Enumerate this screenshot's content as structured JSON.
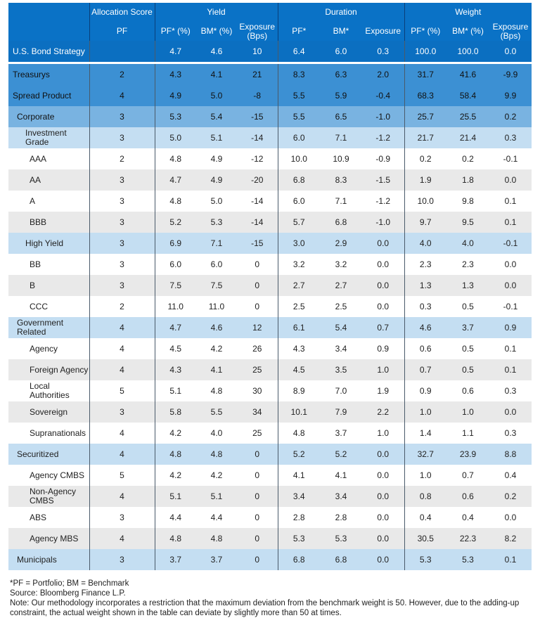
{
  "header": {
    "groups": [
      "Allocation Score",
      "Yield",
      "Duration",
      "Weight"
    ],
    "sub": [
      "PF",
      "PF* (%)",
      "BM* (%)",
      "Exposure (Bps)",
      "PF*",
      "BM*",
      "Exposure",
      "PF* (%)",
      "BM* (%)",
      "Exposure (Bps)"
    ]
  },
  "colors": {
    "header": "#0a72c6",
    "top": "#0b6fc1",
    "dark": "#3c90d3",
    "mid": "#79b3e1",
    "light": "#c4def2",
    "gray": "#e9e9e9"
  },
  "rows": [
    {
      "label": "U.S. Bond Strategy",
      "style": "top",
      "level": 0,
      "v": [
        "",
        "4.7",
        "4.6",
        "10",
        "6.4",
        "6.0",
        "0.3",
        "100.0",
        "100.0",
        "0.0"
      ]
    },
    {
      "label": "Treasurys",
      "style": "dark",
      "level": 0,
      "v": [
        "2",
        "4.3",
        "4.1",
        "21",
        "8.3",
        "6.3",
        "2.0",
        "31.7",
        "41.6",
        "-9.9"
      ]
    },
    {
      "label": "Spread Product",
      "style": "dark",
      "level": 0,
      "v": [
        "4",
        "4.9",
        "5.0",
        "-8",
        "5.5",
        "5.9",
        "-0.4",
        "68.3",
        "58.4",
        "9.9"
      ]
    },
    {
      "label": "Corporate",
      "style": "mid",
      "level": 1,
      "v": [
        "3",
        "5.3",
        "5.4",
        "-15",
        "5.5",
        "6.5",
        "-1.0",
        "25.7",
        "25.5",
        "0.2"
      ]
    },
    {
      "label": "Investment Grade",
      "style": "light",
      "level": 2,
      "v": [
        "3",
        "5.0",
        "5.1",
        "-14",
        "6.0",
        "7.1",
        "-1.2",
        "21.7",
        "21.4",
        "0.3"
      ]
    },
    {
      "label": "AAA",
      "style": "white",
      "level": 3,
      "v": [
        "2",
        "4.8",
        "4.9",
        "-12",
        "10.0",
        "10.9",
        "-0.9",
        "0.2",
        "0.2",
        "-0.1"
      ]
    },
    {
      "label": "AA",
      "style": "gray",
      "level": 3,
      "v": [
        "3",
        "4.7",
        "4.9",
        "-20",
        "6.8",
        "8.3",
        "-1.5",
        "1.9",
        "1.8",
        "0.0"
      ]
    },
    {
      "label": "A",
      "style": "white",
      "level": 3,
      "v": [
        "3",
        "4.8",
        "5.0",
        "-14",
        "6.0",
        "7.1",
        "-1.2",
        "10.0",
        "9.8",
        "0.1"
      ]
    },
    {
      "label": "BBB",
      "style": "gray",
      "level": 3,
      "v": [
        "3",
        "5.2",
        "5.3",
        "-14",
        "5.7",
        "6.8",
        "-1.0",
        "9.7",
        "9.5",
        "0.1"
      ]
    },
    {
      "label": "High Yield",
      "style": "light",
      "level": 2,
      "v": [
        "3",
        "6.9",
        "7.1",
        "-15",
        "3.0",
        "2.9",
        "0.0",
        "4.0",
        "4.0",
        "-0.1"
      ]
    },
    {
      "label": "BB",
      "style": "white",
      "level": 3,
      "v": [
        "3",
        "6.0",
        "6.0",
        "0",
        "3.2",
        "3.2",
        "0.0",
        "2.3",
        "2.3",
        "0.0"
      ]
    },
    {
      "label": "B",
      "style": "gray",
      "level": 3,
      "v": [
        "3",
        "7.5",
        "7.5",
        "0",
        "2.7",
        "2.7",
        "0.0",
        "1.3",
        "1.3",
        "0.0"
      ]
    },
    {
      "label": "CCC",
      "style": "white",
      "level": 3,
      "v": [
        "2",
        "11.0",
        "11.0",
        "0",
        "2.5",
        "2.5",
        "0.0",
        "0.3",
        "0.5",
        "-0.1"
      ]
    },
    {
      "label": "Government Related",
      "style": "light",
      "level": 1,
      "v": [
        "4",
        "4.7",
        "4.6",
        "12",
        "6.1",
        "5.4",
        "0.7",
        "4.6",
        "3.7",
        "0.9"
      ]
    },
    {
      "label": "Agency",
      "style": "white",
      "level": 3,
      "v": [
        "4",
        "4.5",
        "4.2",
        "26",
        "4.3",
        "3.4",
        "0.9",
        "0.6",
        "0.5",
        "0.1"
      ]
    },
    {
      "label": "Foreign Agency",
      "style": "gray",
      "level": 3,
      "v": [
        "4",
        "4.3",
        "4.1",
        "25",
        "4.5",
        "3.5",
        "1.0",
        "0.7",
        "0.5",
        "0.1"
      ]
    },
    {
      "label": "Local Authorities",
      "style": "white",
      "level": 3,
      "v": [
        "5",
        "5.1",
        "4.8",
        "30",
        "8.9",
        "7.0",
        "1.9",
        "0.9",
        "0.6",
        "0.3"
      ]
    },
    {
      "label": "Sovereign",
      "style": "gray",
      "level": 3,
      "v": [
        "3",
        "5.8",
        "5.5",
        "34",
        "10.1",
        "7.9",
        "2.2",
        "1.0",
        "1.0",
        "0.0"
      ]
    },
    {
      "label": "Supranationals",
      "style": "white",
      "level": 3,
      "v": [
        "4",
        "4.2",
        "4.0",
        "25",
        "4.8",
        "3.7",
        "1.0",
        "1.4",
        "1.1",
        "0.3"
      ]
    },
    {
      "label": "Securitized",
      "style": "light",
      "level": 1,
      "v": [
        "4",
        "4.8",
        "4.8",
        "0",
        "5.2",
        "5.2",
        "0.0",
        "32.7",
        "23.9",
        "8.8"
      ]
    },
    {
      "label": "Agency CMBS",
      "style": "white",
      "level": 3,
      "v": [
        "5",
        "4.2",
        "4.2",
        "0",
        "4.1",
        "4.1",
        "0.0",
        "1.0",
        "0.7",
        "0.4"
      ]
    },
    {
      "label": "Non-Agency CMBS",
      "style": "gray",
      "level": 3,
      "v": [
        "4",
        "5.1",
        "5.1",
        "0",
        "3.4",
        "3.4",
        "0.0",
        "0.8",
        "0.6",
        "0.2"
      ]
    },
    {
      "label": "ABS",
      "style": "white",
      "level": 3,
      "v": [
        "3",
        "4.4",
        "4.4",
        "0",
        "2.8",
        "2.8",
        "0.0",
        "0.4",
        "0.4",
        "0.0"
      ]
    },
    {
      "label": "Agency MBS",
      "style": "gray",
      "level": 3,
      "v": [
        "4",
        "4.8",
        "4.8",
        "0",
        "5.3",
        "5.3",
        "0.0",
        "30.5",
        "22.3",
        "8.2"
      ]
    },
    {
      "label": "Municipals",
      "style": "light",
      "level": 1,
      "v": [
        "3",
        "3.7",
        "3.7",
        "0",
        "6.8",
        "6.8",
        "0.0",
        "5.3",
        "5.3",
        "0.1"
      ]
    }
  ],
  "footer": {
    "line1": "*PF = Portfolio; BM = Benchmark",
    "line2": "Source: Bloomberg Finance L.P.",
    "line3": "Note: Our methodology incorporates a restriction that the maximum deviation from the benchmark weight is 50. However, due to the adding-up constraint, the actual weight shown in the table can deviate by slightly more than 50 at times."
  }
}
